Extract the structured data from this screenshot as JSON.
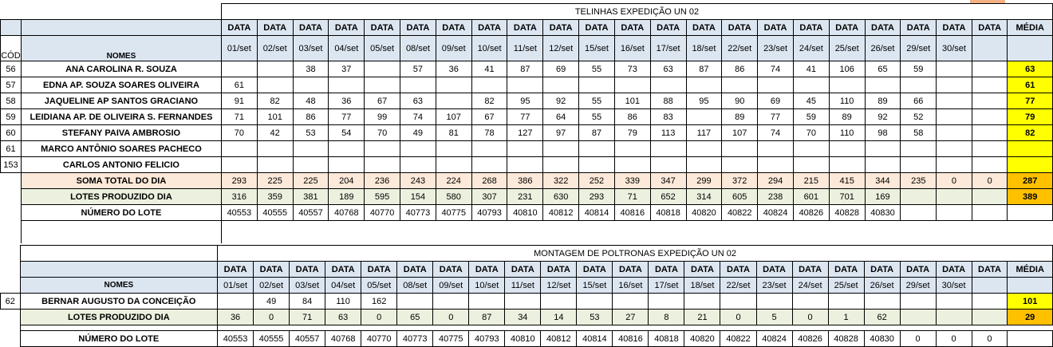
{
  "section1": {
    "title": "TELINHAS EXPEDIÇÃO UN 02",
    "data_label": "DATA",
    "media_label": "MÉDIA",
    "cod_label": "CÓD",
    "nomes_label": "NOMES",
    "dates": [
      "01/set",
      "02/set",
      "03/set",
      "04/set",
      "05/set",
      "08/set",
      "09/set",
      "10/set",
      "11/set",
      "12/set",
      "15/set",
      "16/set",
      "17/set",
      "18/set",
      "22/set",
      "23/set",
      "24/set",
      "25/set",
      "26/set",
      "29/set",
      "30/set",
      ""
    ],
    "rows": [
      {
        "cod": "56",
        "name": "ANA CAROLINA R. SOUZA",
        "values": [
          "",
          "",
          "38",
          "37",
          "",
          "57",
          "36",
          "41",
          "87",
          "69",
          "55",
          "73",
          "63",
          "87",
          "86",
          "74",
          "41",
          "106",
          "65",
          "59",
          "",
          ""
        ],
        "media": "63"
      },
      {
        "cod": "57",
        "name": "EDNA AP. SOUZA SOARES OLIVEIRA",
        "values": [
          "61",
          "",
          "",
          "",
          "",
          "",
          "",
          "",
          "",
          "",
          "",
          "",
          "",
          "",
          "",
          "",
          "",
          "",
          "",
          "",
          "",
          ""
        ],
        "media": "61"
      },
      {
        "cod": "58",
        "name": "JAQUELINE AP SANTOS GRACIANO",
        "values": [
          "91",
          "82",
          "48",
          "36",
          "67",
          "63",
          "",
          "82",
          "95",
          "92",
          "55",
          "101",
          "88",
          "95",
          "90",
          "69",
          "45",
          "110",
          "89",
          "66",
          "",
          ""
        ],
        "media": "77"
      },
      {
        "cod": "59",
        "name": "LEIDIANA AP. DE OLIVEIRA S. FERNANDES",
        "values": [
          "71",
          "101",
          "86",
          "77",
          "99",
          "74",
          "107",
          "67",
          "77",
          "64",
          "55",
          "86",
          "83",
          "",
          "89",
          "77",
          "59",
          "89",
          "92",
          "52",
          "",
          ""
        ],
        "media": "79"
      },
      {
        "cod": "60",
        "name": "STEFANY PAIVA AMBROSIO",
        "values": [
          "70",
          "42",
          "53",
          "54",
          "70",
          "49",
          "81",
          "78",
          "127",
          "97",
          "87",
          "79",
          "113",
          "117",
          "107",
          "74",
          "70",
          "110",
          "98",
          "58",
          "",
          ""
        ],
        "media": "82"
      },
      {
        "cod": "61",
        "name": "MARCO ANTÔNIO SOARES PACHECO",
        "values": [
          "",
          "",
          "",
          "",
          "",
          "",
          "",
          "",
          "",
          "",
          "",
          "",
          "",
          "",
          "",
          "",
          "",
          "",
          "",
          "",
          "",
          ""
        ],
        "media": ""
      },
      {
        "cod": "153",
        "name": "CARLOS ANTONIO FELICIO",
        "values": [
          "",
          "",
          "",
          "",
          "",
          "",
          "",
          "",
          "",
          "",
          "",
          "",
          "",
          "",
          "",
          "",
          "",
          "",
          "",
          "",
          "",
          ""
        ],
        "media": ""
      }
    ],
    "soma": {
      "label": "SOMA TOTAL DO DIA",
      "values": [
        "293",
        "225",
        "225",
        "204",
        "236",
        "243",
        "224",
        "268",
        "386",
        "322",
        "252",
        "339",
        "347",
        "299",
        "372",
        "294",
        "215",
        "415",
        "344",
        "235",
        "0",
        "0"
      ],
      "media": "287"
    },
    "lotes": {
      "label": "LOTES PRODUZIDO DIA",
      "values": [
        "316",
        "359",
        "381",
        "189",
        "595",
        "154",
        "580",
        "307",
        "231",
        "630",
        "293",
        "71",
        "652",
        "314",
        "605",
        "238",
        "601",
        "701",
        "169",
        "",
        "",
        ""
      ],
      "media": "389"
    },
    "numero": {
      "label": "NÚMERO DO LOTE",
      "values": [
        "40553",
        "40555",
        "40557",
        "40768",
        "40770",
        "40773",
        "40775",
        "40793",
        "40810",
        "40812",
        "40814",
        "40816",
        "40818",
        "40820",
        "40822",
        "40824",
        "40826",
        "40828",
        "40830",
        "",
        "",
        ""
      ]
    }
  },
  "section2": {
    "title": "MONTAGEM DE POLTRONAS EXPEDIÇÃO UN 02",
    "data_label": "DATA",
    "media_label": "MÉDIA",
    "nomes_label": "NOMES",
    "dates": [
      "01/set",
      "02/set",
      "03/set",
      "04/set",
      "05/set",
      "08/set",
      "09/set",
      "10/set",
      "11/set",
      "12/set",
      "15/set",
      "16/set",
      "17/set",
      "18/set",
      "22/set",
      "23/set",
      "24/set",
      "25/set",
      "26/set",
      "29/set",
      "30/set",
      ""
    ],
    "row": {
      "cod": "62",
      "name": "BERNAR AUGUSTO DA CONCEIÇÃO",
      "values": [
        "",
        "49",
        "84",
        "110",
        "162",
        "",
        "",
        "",
        "",
        "",
        "",
        "",
        "",
        "",
        "",
        "",
        "",
        "",
        "",
        "",
        "",
        ""
      ],
      "media": "101"
    },
    "lotes": {
      "label": "LOTES PRODUZIDO DIA",
      "values": [
        "36",
        "0",
        "71",
        "63",
        "0",
        "65",
        "0",
        "87",
        "34",
        "14",
        "53",
        "27",
        "8",
        "21",
        "0",
        "5",
        "0",
        "1",
        "62",
        "",
        "",
        ""
      ],
      "media": "29"
    },
    "numero": {
      "label": "NÚMERO DO LOTE",
      "values": [
        "40553",
        "40555",
        "40557",
        "40768",
        "40770",
        "40773",
        "40775",
        "40793",
        "40810",
        "40812",
        "40814",
        "40816",
        "40818",
        "40820",
        "40822",
        "40824",
        "40826",
        "40828",
        "40830",
        "0",
        "0",
        "0"
      ]
    }
  }
}
